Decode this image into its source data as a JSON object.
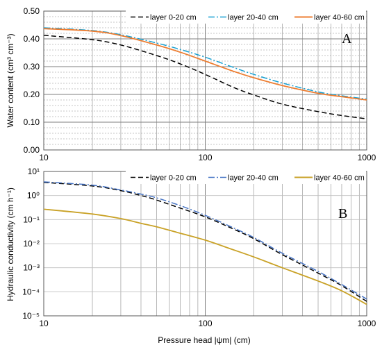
{
  "chart_data": [
    {
      "type": "line",
      "panel_label": "A",
      "ylabel": "Water content (cm³ cm⁻³)",
      "xlabel": "",
      "x_scale": "log",
      "xlim": [
        10,
        1000
      ],
      "ylim": [
        0,
        0.5
      ],
      "grid": true,
      "legend_position": "top",
      "x_ticks": [
        "10",
        "100",
        "1000"
      ],
      "y_ticks": [
        "0.00",
        "0.10",
        "0.20",
        "0.30",
        "0.40",
        "0.50"
      ],
      "x": [
        10,
        20,
        30,
        50,
        70,
        100,
        150,
        200,
        300,
        500,
        700,
        1000
      ],
      "series": [
        {
          "name": "layer 0-20 cm",
          "color": "#000000",
          "dash": "dash",
          "values": [
            0.413,
            0.397,
            0.378,
            0.34,
            0.31,
            0.272,
            0.225,
            0.198,
            0.165,
            0.138,
            0.124,
            0.112
          ]
        },
        {
          "name": "layer 20-40 cm",
          "color": "#17a0d2",
          "dash": "dashdot",
          "values": [
            0.44,
            0.43,
            0.415,
            0.385,
            0.362,
            0.334,
            0.297,
            0.272,
            0.241,
            0.209,
            0.195,
            0.183
          ]
        },
        {
          "name": "layer 40-60 cm",
          "color": "#ed7d31",
          "dash": "solid",
          "values": [
            0.437,
            0.428,
            0.412,
            0.378,
            0.352,
            0.32,
            0.283,
            0.26,
            0.232,
            0.204,
            0.192,
            0.18
          ]
        }
      ]
    },
    {
      "type": "line",
      "panel_label": "B",
      "ylabel": "Hydraulic conductivity (cm h⁻¹)",
      "xlabel": "Pressure head |ψm| (cm)",
      "x_scale": "log",
      "y_scale": "log",
      "xlim": [
        10,
        1000
      ],
      "ylim": [
        1e-05,
        10
      ],
      "grid": true,
      "legend_position": "top",
      "x_ticks": [
        "10",
        "100",
        "1000"
      ],
      "y_ticks": [
        "10⁻⁵",
        "10⁻⁴",
        "10⁻³",
        "10⁻²",
        "10⁻¹",
        "10⁰",
        "10¹"
      ],
      "x": [
        10,
        20,
        30,
        40,
        50,
        70,
        100,
        150,
        200,
        300,
        500,
        700,
        1000
      ],
      "series": [
        {
          "name": "layer 0-20 cm",
          "color": "#000000",
          "dash": "dash",
          "values": [
            3.5,
            2.5,
            1.6,
            1.0,
            0.65,
            0.3,
            0.13,
            0.04,
            0.016,
            0.0035,
            0.0006,
            0.00018,
            4e-05
          ]
        },
        {
          "name": "layer 20-40 cm",
          "color": "#4472c4",
          "dash": "dashdot",
          "values": [
            3.7,
            2.7,
            1.7,
            1.15,
            0.8,
            0.38,
            0.15,
            0.045,
            0.018,
            0.004,
            0.0007,
            0.0002,
            5e-05
          ]
        },
        {
          "name": "layer 40-60 cm",
          "color": "#c9a227",
          "dash": "solid",
          "values": [
            0.27,
            0.17,
            0.11,
            0.07,
            0.05,
            0.027,
            0.014,
            0.0055,
            0.0028,
            0.001,
            0.00028,
            0.00011,
            3e-05
          ]
        }
      ]
    }
  ]
}
